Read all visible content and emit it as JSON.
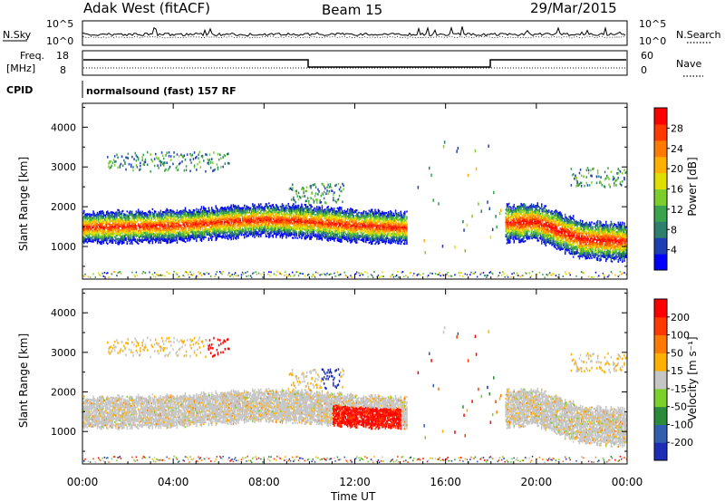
{
  "header": {
    "title": "Adak West (fitACF)",
    "beam": "Beam 15",
    "date": "29/Mar/2015"
  },
  "sky_panel": {
    "left_label": "N.Sky",
    "left_ticks": [
      "10^5",
      "10^0"
    ],
    "right_ticks": [
      "10^5",
      "10^0"
    ],
    "right_label": "N.Search"
  },
  "freq_panel": {
    "left_label_line1": "Freq.",
    "left_label_line2": "[MHz]",
    "left_ticks": [
      "18",
      "8"
    ],
    "right_ticks": [
      "60",
      "0"
    ],
    "right_label": "Nave",
    "cpid_label": "CPID",
    "cpid_text": "normalsound (fast) 157 RF"
  },
  "chart_data": [
    {
      "type": "heatmap",
      "panel": "power",
      "ylabel": "Slant Range [km]",
      "xlabel": "",
      "yticks": [
        "4000",
        "3000",
        "2000",
        "1000"
      ],
      "ylim": [
        180,
        4600
      ],
      "xlim": [
        0,
        24
      ],
      "colorbar": {
        "label": "Power [dB]",
        "ticks": [
          "28",
          "24",
          "20",
          "16",
          "12",
          "8",
          "4"
        ],
        "colors": [
          "#0000ff",
          "#1d3fb3",
          "#2e7f6e",
          "#3aa34d",
          "#7ccf2a",
          "#e0e000",
          "#ffb000",
          "#ff7a00",
          "#ff3a00",
          "#ff0000"
        ]
      },
      "main_band": [
        {
          "t": 0,
          "range_km": 1450
        },
        {
          "t": 4,
          "range_km": 1500
        },
        {
          "t": 8,
          "range_km": 1650
        },
        {
          "t": 10,
          "range_km": 1600
        },
        {
          "t": 12,
          "range_km": 1500
        },
        {
          "t": 14,
          "range_km": 1450
        },
        {
          "t": 20,
          "range_km": 1600
        },
        {
          "t": 22,
          "range_km": 1150
        },
        {
          "t": 24,
          "range_km": 1100
        }
      ]
    },
    {
      "type": "heatmap",
      "panel": "velocity",
      "ylabel": "Slant Range [km]",
      "xlabel": "Time UT",
      "yticks": [
        "4000",
        "3000",
        "2000",
        "1000"
      ],
      "xticks": [
        "00:00",
        "04:00",
        "08:00",
        "12:00",
        "16:00",
        "20:00",
        "00:00"
      ],
      "ylim": [
        180,
        4600
      ],
      "xlim": [
        0,
        24
      ],
      "colorbar": {
        "label": "Velocity [m s⁻¹]",
        "ticks": [
          "200",
          "100",
          "50",
          "15",
          "-15",
          "-50",
          "-100",
          "-200"
        ],
        "colors": [
          "#1c2db8",
          "#2f5fae",
          "#2a8c3a",
          "#79d12a",
          "#c6c6c6",
          "#ffb000",
          "#ff7a00",
          "#ff3a00",
          "#ff0000"
        ]
      }
    }
  ]
}
